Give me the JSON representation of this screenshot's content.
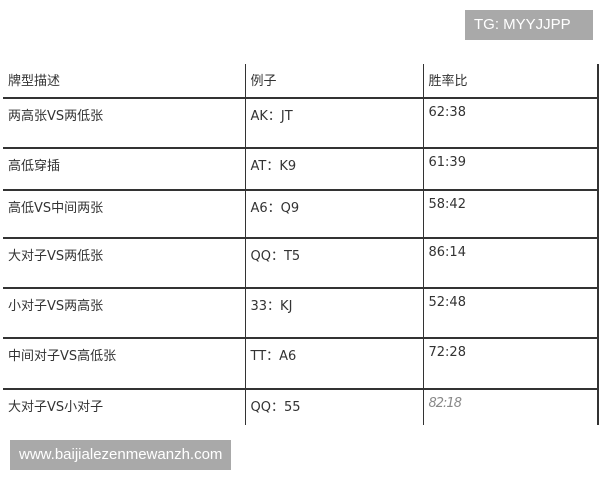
{
  "watermark_top": "TG: MYYJJPP",
  "watermark_bottom": "www.baijialezenmewanzh.com",
  "table": {
    "headers": [
      "牌型描述",
      "例子",
      "胜率比"
    ],
    "rows": [
      [
        "两高张VS两低张",
        "AK：JT",
        "62:38"
      ],
      [
        "高低穿插",
        "AT：K9",
        "61:39"
      ],
      [
        "高低VS中间两张",
        "A6：Q9",
        "58:42"
      ],
      [
        "大对子VS两低张",
        "QQ：T5",
        "86:14"
      ],
      [
        "小对子VS两高张",
        "33：KJ",
        "52:48"
      ],
      [
        "中间对子VS高低张",
        "TT：A6",
        "72:28"
      ],
      [
        "大对子VS小对子",
        "QQ：55",
        "82:18"
      ]
    ]
  }
}
